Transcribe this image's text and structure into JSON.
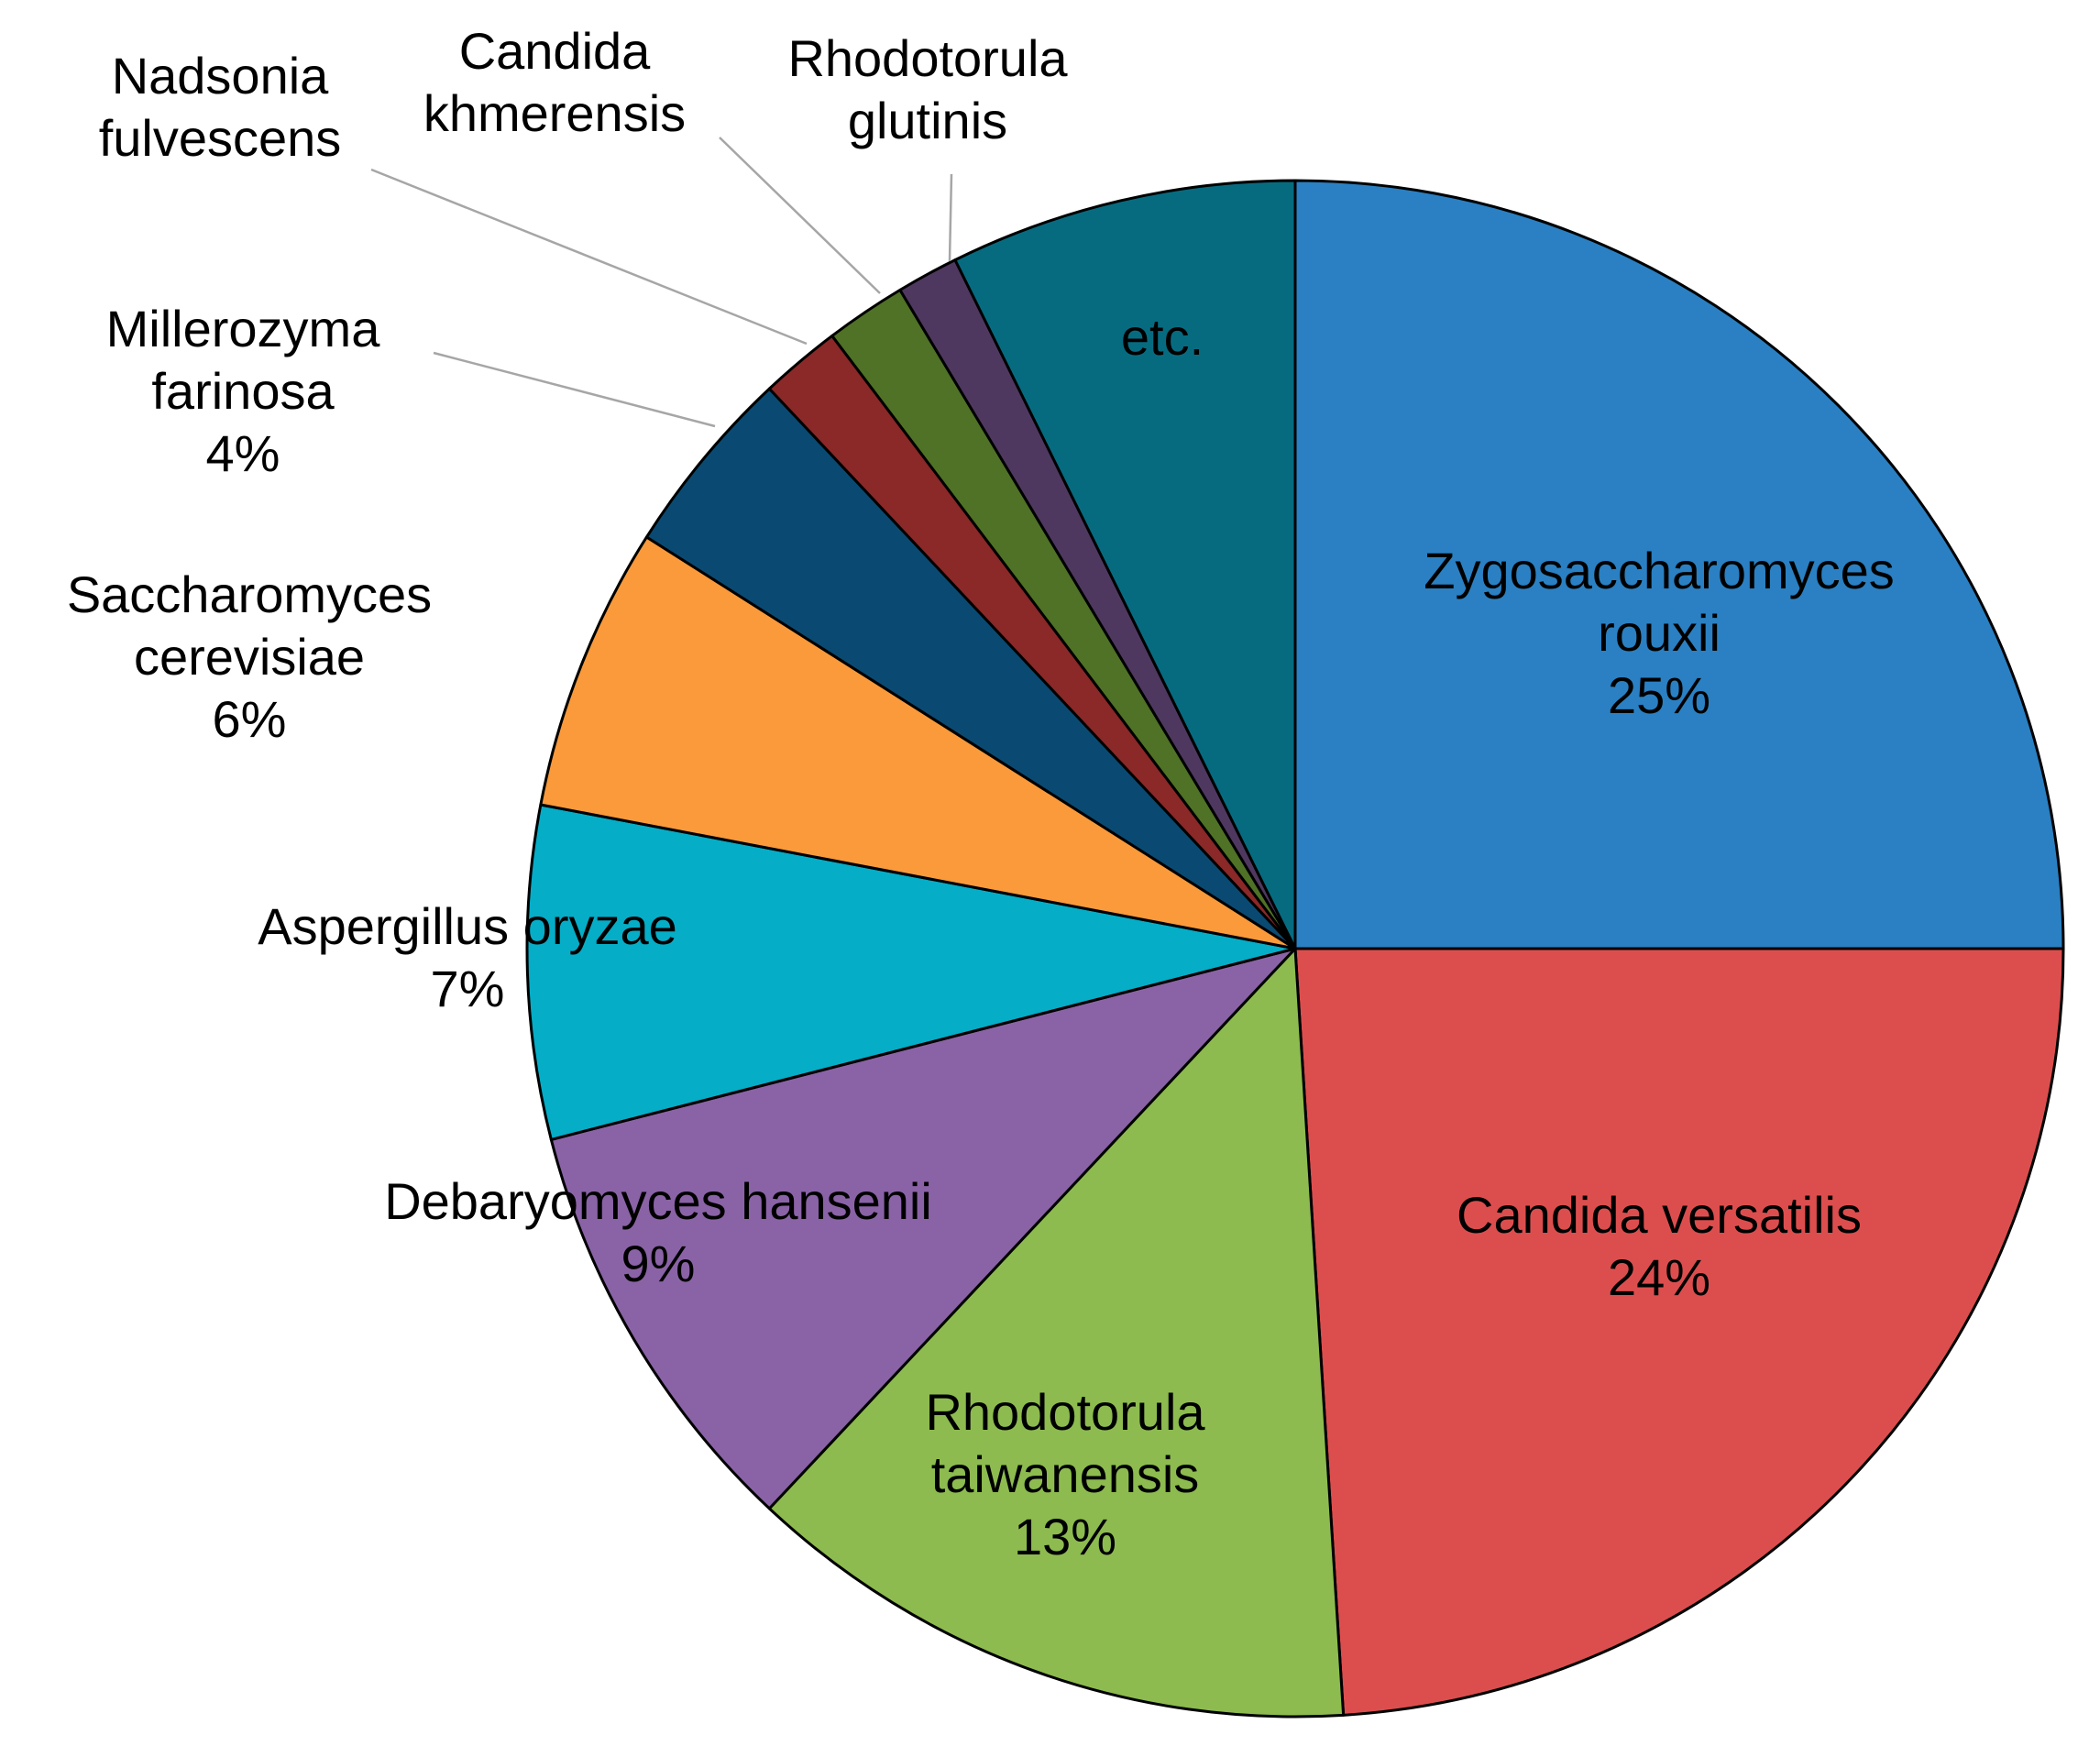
{
  "chart_data": {
    "type": "pie",
    "slices": [
      {
        "name": "Zygosaccharomyces rouxii",
        "name_lines": [
          "Zygosaccharomyces",
          "rouxii"
        ],
        "value": 25,
        "value_label": "25%",
        "color": "#2a80c2"
      },
      {
        "name": "Candida versatilis",
        "name_lines": [
          "Candida versatilis"
        ],
        "value": 24,
        "value_label": "24%",
        "color": "#dc4e4e"
      },
      {
        "name": "Rhodotorula taiwanensis",
        "name_lines": [
          "Rhodotorula",
          "taiwanensis"
        ],
        "value": 13,
        "value_label": "13%",
        "color": "#8dbb4f"
      },
      {
        "name": "Debaryomyces hansenii",
        "name_lines": [
          "Debaryomyces hansenii"
        ],
        "value": 9,
        "value_label": "9%",
        "color": "#8a63a6"
      },
      {
        "name": "Aspergillus oryzae",
        "name_lines": [
          "Aspergillus oryzae"
        ],
        "value": 7,
        "value_label": "7%",
        "color": "#05adc7"
      },
      {
        "name": "Saccharomyces cerevisiae",
        "name_lines": [
          "Saccharomyces",
          "cerevisiae"
        ],
        "value": 6,
        "value_label": "6%",
        "color": "#fa9a3b"
      },
      {
        "name": "Millerozyma farinosa",
        "name_lines": [
          "Millerozyma",
          "farinosa"
        ],
        "value": 4,
        "value_label": "4%",
        "color": "#0a4a72"
      },
      {
        "name": "Nadsonia fulvescens",
        "name_lines": [
          "Nadsonia",
          "fulvescens"
        ],
        "value": 1.7,
        "value_label": "",
        "color": "#8b2828"
      },
      {
        "name": "Candida khmerensis",
        "name_lines": [
          "Candida",
          "khmerensis"
        ],
        "value": 1.7,
        "value_label": "",
        "color": "#4f7226"
      },
      {
        "name": "Rhodotorula glutinis",
        "name_lines": [
          "Rhodotorula",
          "glutinis"
        ],
        "value": 1.3,
        "value_label": "",
        "color": "#4f3860"
      },
      {
        "name": "etc.",
        "name_lines": [
          "etc."
        ],
        "value": 7.3,
        "value_label": "",
        "color": "#076b80"
      }
    ],
    "start": "12 o'clock",
    "direction": "clockwise",
    "legend": "none"
  }
}
